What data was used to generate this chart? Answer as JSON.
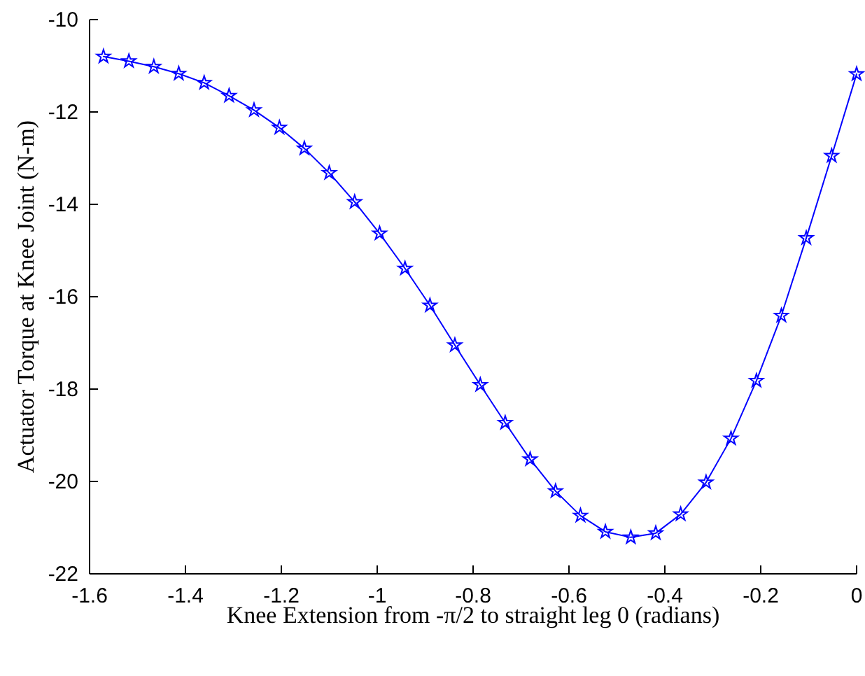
{
  "chart_data": {
    "type": "line",
    "xlabel": "Knee Extension from -π/2 to straight leg 0 (radians)",
    "ylabel": "Actuator Torque at Knee Joint (N-m)",
    "x": [
      -1.571,
      -1.518,
      -1.466,
      -1.414,
      -1.361,
      -1.309,
      -1.257,
      -1.204,
      -1.152,
      -1.1,
      -1.047,
      -0.995,
      -0.942,
      -0.89,
      -0.838,
      -0.785,
      -0.733,
      -0.681,
      -0.628,
      -0.576,
      -0.524,
      -0.471,
      -0.419,
      -0.367,
      -0.314,
      -0.262,
      -0.209,
      -0.157,
      -0.105,
      -0.052,
      0
    ],
    "series": [
      {
        "color": "#0000ff",
        "values": [
          -10.8,
          -10.9,
          -11.02,
          -11.17,
          -11.37,
          -11.65,
          -11.96,
          -12.34,
          -12.79,
          -13.32,
          -13.95,
          -14.63,
          -15.39,
          -16.19,
          -17.05,
          -17.91,
          -18.73,
          -19.52,
          -20.21,
          -20.74,
          -21.09,
          -21.21,
          -21.12,
          -20.71,
          -20.02,
          -19.07,
          -17.82,
          -16.41,
          -14.73,
          -12.95,
          -11.18
        ]
      }
    ],
    "xlim": [
      -1.6,
      0
    ],
    "xticks": [
      -1.6,
      -1.4,
      -1.2,
      -1,
      -0.8,
      -0.6,
      -0.4,
      -0.2,
      0
    ],
    "ylim": [
      -22,
      -10
    ],
    "yticks": [
      -22,
      -20,
      -18,
      -16,
      -14,
      -12,
      -10
    ],
    "grid": false,
    "marker": "star",
    "line_style": "solid"
  }
}
